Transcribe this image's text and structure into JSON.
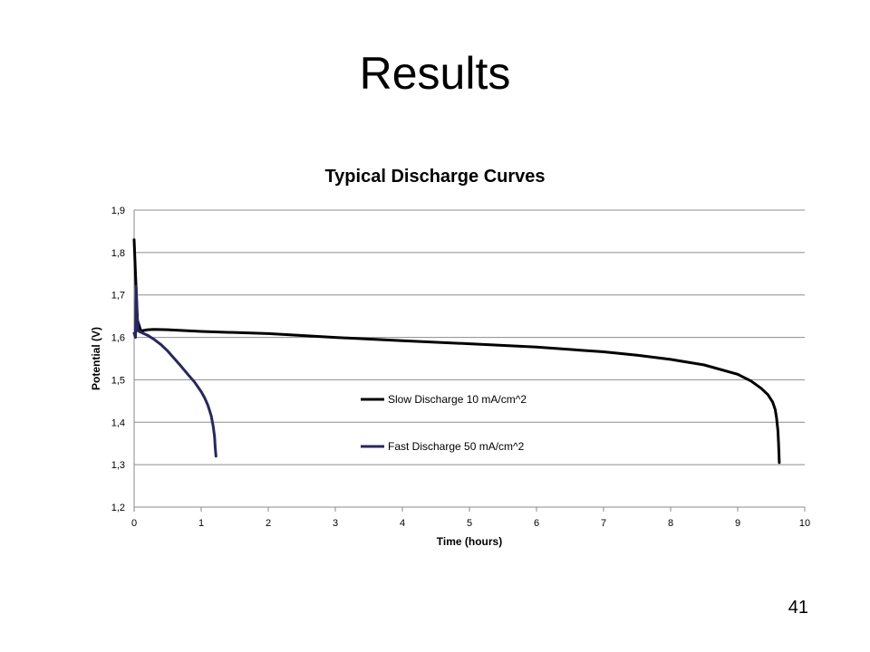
{
  "slide": {
    "title": "Results",
    "page_number": "41"
  },
  "chart_data": {
    "type": "line",
    "title": "Typical Discharge Curves",
    "xlabel": "Time (hours)",
    "ylabel": "Potential (V)",
    "xlim": [
      0,
      10
    ],
    "ylim": [
      1.2,
      1.9
    ],
    "x_ticks": [
      "0",
      "1",
      "2",
      "3",
      "4",
      "5",
      "6",
      "7",
      "8",
      "9",
      "10"
    ],
    "y_ticks": [
      "1,2",
      "1,3",
      "1,4",
      "1,5",
      "1,6",
      "1,7",
      "1,8",
      "1,9"
    ],
    "grid": "horizontal",
    "legend_position": "center",
    "series": [
      {
        "name": "Slow Discharge 10 mA/cm^2",
        "color": "#000000",
        "points": [
          [
            0.0,
            1.83
          ],
          [
            0.02,
            1.75
          ],
          [
            0.05,
            1.64
          ],
          [
            0.1,
            1.615
          ],
          [
            0.2,
            1.618
          ],
          [
            0.3,
            1.619
          ],
          [
            0.5,
            1.618
          ],
          [
            1.0,
            1.614
          ],
          [
            2.0,
            1.609
          ],
          [
            3.0,
            1.6
          ],
          [
            4.0,
            1.592
          ],
          [
            5.0,
            1.585
          ],
          [
            6.0,
            1.577
          ],
          [
            7.0,
            1.566
          ],
          [
            7.5,
            1.558
          ],
          [
            8.0,
            1.548
          ],
          [
            8.5,
            1.535
          ],
          [
            9.0,
            1.513
          ],
          [
            9.2,
            1.497
          ],
          [
            9.35,
            1.48
          ],
          [
            9.45,
            1.465
          ],
          [
            9.52,
            1.448
          ],
          [
            9.56,
            1.43
          ],
          [
            9.58,
            1.41
          ],
          [
            9.6,
            1.38
          ],
          [
            9.61,
            1.35
          ],
          [
            9.62,
            1.305
          ]
        ]
      },
      {
        "name": "Fast Discharge 50 mA/cm^2",
        "color": "#262763",
        "points": [
          [
            0.0,
            1.61
          ],
          [
            0.02,
            1.6
          ],
          [
            0.03,
            1.72
          ],
          [
            0.04,
            1.66
          ],
          [
            0.06,
            1.615
          ],
          [
            0.1,
            1.612
          ],
          [
            0.2,
            1.605
          ],
          [
            0.3,
            1.595
          ],
          [
            0.4,
            1.583
          ],
          [
            0.5,
            1.568
          ],
          [
            0.6,
            1.55
          ],
          [
            0.7,
            1.532
          ],
          [
            0.8,
            1.513
          ],
          [
            0.9,
            1.495
          ],
          [
            1.0,
            1.472
          ],
          [
            1.05,
            1.458
          ],
          [
            1.1,
            1.44
          ],
          [
            1.15,
            1.415
          ],
          [
            1.18,
            1.39
          ],
          [
            1.2,
            1.365
          ],
          [
            1.21,
            1.34
          ],
          [
            1.22,
            1.32
          ]
        ]
      }
    ]
  }
}
